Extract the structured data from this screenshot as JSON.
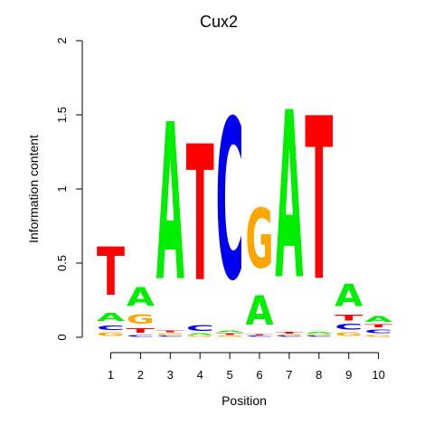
{
  "chart_data": {
    "type": "sequence-logo",
    "title": "Cux2",
    "xlabel": "Position",
    "ylabel": "Information content",
    "ylim": [
      0,
      2
    ],
    "yticks": [
      "0",
      "0.5",
      "1",
      "1.5",
      "2"
    ],
    "positions": [
      "1",
      "2",
      "3",
      "4",
      "5",
      "6",
      "7",
      "8",
      "9",
      "10"
    ],
    "letter_colors": {
      "A": "#00ee00",
      "C": "#0000ee",
      "G": "#ffa500",
      "T": "#ff0000"
    },
    "stacks": [
      [
        [
          "G",
          0.04
        ],
        [
          "C",
          0.05
        ],
        [
          "A",
          0.09
        ],
        [
          "T",
          0.52
        ]
      ],
      [
        [
          "C",
          0.02
        ],
        [
          "T",
          0.05
        ],
        [
          "G",
          0.1
        ],
        [
          "A",
          0.2
        ]
      ],
      [
        [
          "C",
          0.01
        ],
        [
          "G",
          0.02
        ],
        [
          "T",
          0.02
        ],
        [
          "A",
          1.7
        ]
      ],
      [
        [
          "G",
          0.01
        ],
        [
          "A",
          0.02
        ],
        [
          "C",
          0.06
        ],
        [
          "T",
          1.47
        ]
      ],
      [
        [
          "G",
          0.01
        ],
        [
          "T",
          0.02
        ],
        [
          "A",
          0.02
        ],
        [
          "C",
          1.73
        ]
      ],
      [
        [
          "C",
          0.01
        ],
        [
          "T",
          0.01
        ],
        [
          "A",
          0.32
        ],
        [
          "G",
          0.64
        ]
      ],
      [
        [
          "C",
          0.01
        ],
        [
          "G",
          0.01
        ],
        [
          "T",
          0.02
        ],
        [
          "A",
          1.81
        ]
      ],
      [
        [
          "C",
          0.01
        ],
        [
          "G",
          0.01
        ],
        [
          "A",
          0.02
        ],
        [
          "T",
          1.76
        ]
      ],
      [
        [
          "G",
          0.04
        ],
        [
          "C",
          0.06
        ],
        [
          "T",
          0.06
        ],
        [
          "A",
          0.24
        ]
      ],
      [
        [
          "G",
          0.02
        ],
        [
          "C",
          0.04
        ],
        [
          "T",
          0.03
        ],
        [
          "A",
          0.06
        ]
      ]
    ]
  }
}
